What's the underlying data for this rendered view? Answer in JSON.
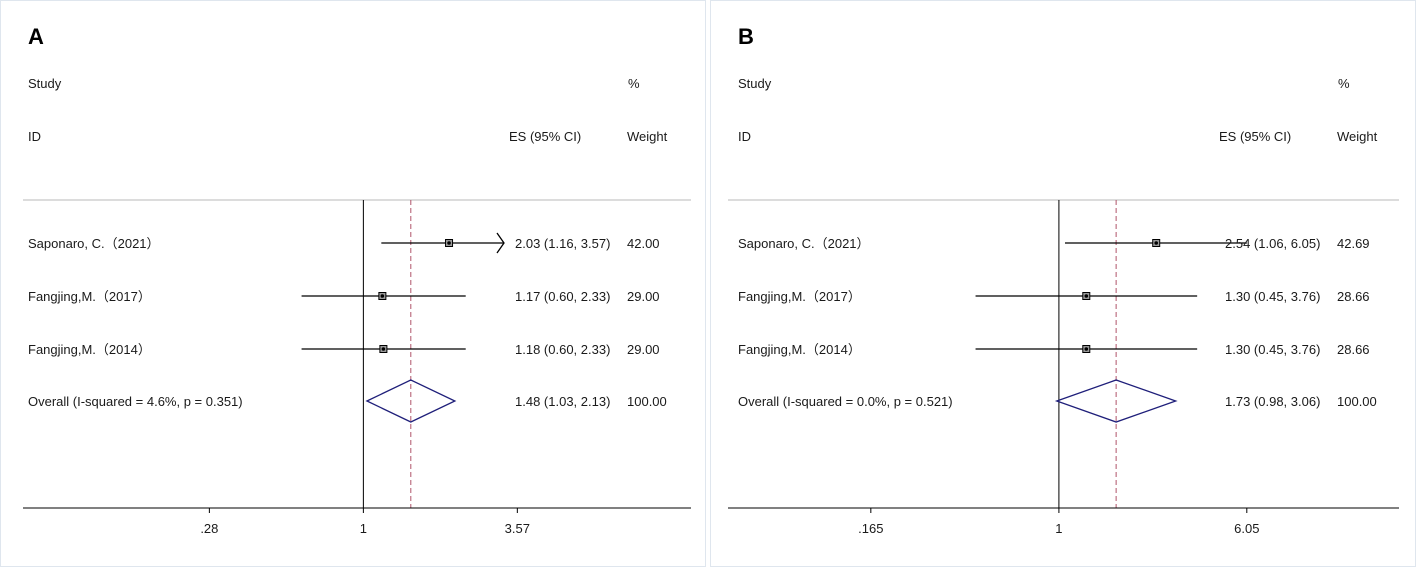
{
  "chart_data": [
    {
      "type": "forest",
      "panel_label": "A",
      "header": {
        "study_top": "Study",
        "study_bottom": "ID",
        "es": "ES (95% CI)",
        "weight_top": "%",
        "weight_bottom": "Weight"
      },
      "studies": [
        {
          "label": "Saponaro, C.（2021）",
          "es": 2.03,
          "lo": 1.16,
          "hi": 3.57,
          "text": "2.03 (1.16, 3.57)",
          "weight": "42.00",
          "arrow_right": true
        },
        {
          "label": "Fangjing,M.（2017）",
          "es": 1.17,
          "lo": 0.6,
          "hi": 2.33,
          "text": "1.17 (0.60, 2.33)",
          "weight": "29.00",
          "arrow_right": false
        },
        {
          "label": "Fangjing,M.（2014）",
          "es": 1.18,
          "lo": 0.6,
          "hi": 2.33,
          "text": "1.18 (0.60, 2.33)",
          "weight": "29.00",
          "arrow_right": false
        }
      ],
      "overall": {
        "label": "Overall  (I-squared = 4.6%, p = 0.351)",
        "es": 1.48,
        "lo": 1.03,
        "hi": 2.13,
        "text": "1.48 (1.03, 2.13)",
        "weight": "100.00"
      },
      "x_scale": "log",
      "xlim": [
        0.28,
        3.57
      ],
      "x_ticks": [
        {
          "value": 0.28,
          "label": ".28"
        },
        {
          "value": 1,
          "label": "1"
        },
        {
          "value": 3.57,
          "label": "3.57"
        }
      ],
      "null_line": 1,
      "pooled_line": 1.48
    },
    {
      "type": "forest",
      "panel_label": "B",
      "header": {
        "study_top": "Study",
        "study_bottom": "ID",
        "es": "ES (95% CI)",
        "weight_top": "%",
        "weight_bottom": "Weight"
      },
      "studies": [
        {
          "label": "Saponaro, C.（2021）",
          "es": 2.54,
          "lo": 1.06,
          "hi": 6.05,
          "text": "2.54 (1.06, 6.05)",
          "weight": "42.69",
          "arrow_right": false
        },
        {
          "label": "Fangjing,M.（2017）",
          "es": 1.3,
          "lo": 0.45,
          "hi": 3.76,
          "text": "1.30 (0.45, 3.76)",
          "weight": "28.66",
          "arrow_right": false
        },
        {
          "label": "Fangjing,M.（2014）",
          "es": 1.3,
          "lo": 0.45,
          "hi": 3.76,
          "text": "1.30 (0.45, 3.76)",
          "weight": "28.66",
          "arrow_right": false
        }
      ],
      "overall": {
        "label": "Overall  (I-squared = 0.0%, p = 0.521)",
        "es": 1.73,
        "lo": 0.98,
        "hi": 3.06,
        "text": "1.73 (0.98, 3.06)",
        "weight": "100.00"
      },
      "x_scale": "log",
      "xlim": [
        0.165,
        6.05
      ],
      "x_ticks": [
        {
          "value": 0.165,
          "label": ".165"
        },
        {
          "value": 1,
          "label": "1"
        },
        {
          "value": 6.05,
          "label": "6.05"
        }
      ],
      "null_line": 1,
      "pooled_line": 1.73
    }
  ],
  "colors": {
    "axis": "#000000",
    "ci_line": "#000000",
    "diamond": "#1f1f7a",
    "pooled_line": "#b0546a",
    "grid_rule": "#b8b8b8"
  }
}
